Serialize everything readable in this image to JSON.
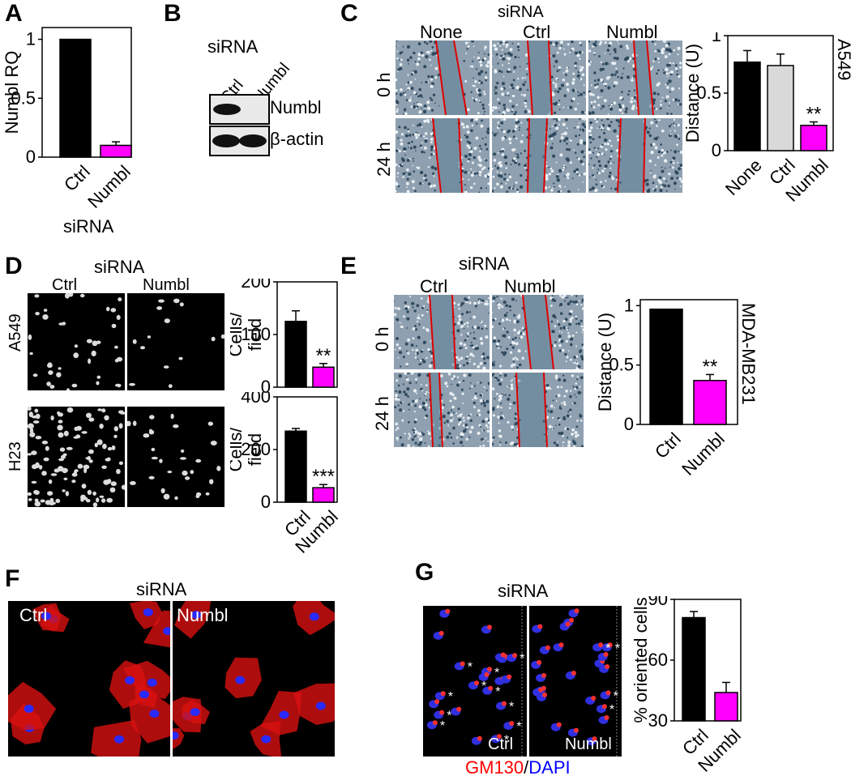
{
  "panels": {
    "A": {
      "label": "A",
      "ylabel": "Numbl RQ",
      "xgroup": "siRNA",
      "chart_data": {
        "type": "bar",
        "categories": [
          "Ctrl",
          "Numbl"
        ],
        "values": [
          1.0,
          0.1
        ],
        "errors": [
          0,
          0.03
        ],
        "colors": [
          "#000000",
          "#ff00ff"
        ],
        "yticks": [
          "0",
          "0.5",
          "1"
        ],
        "ylim": [
          0,
          1.1
        ],
        "ylabel": "Numbl RQ",
        "xlabel": "siRNA"
      }
    },
    "B": {
      "label": "B",
      "group": "siRNA",
      "lanes": [
        "Ctrl",
        "Numbl"
      ],
      "bands": [
        "Numbl",
        "β-actin"
      ]
    },
    "C": {
      "label": "C",
      "group": "siRNA",
      "columns": [
        "None",
        "Ctrl",
        "Numbl"
      ],
      "rows": [
        "0 h",
        "24 h"
      ],
      "cell_line": "A549",
      "chart_data": {
        "type": "bar",
        "categories": [
          "None",
          "Ctrl",
          "Numbl"
        ],
        "values": [
          0.77,
          0.74,
          0.22
        ],
        "errors": [
          0.1,
          0.1,
          0.03
        ],
        "colors": [
          "#000000",
          "#d9d9d9",
          "#ff00ff"
        ],
        "annotations": [
          "",
          "",
          "**"
        ],
        "yticks": [
          "0",
          "0.5",
          "1"
        ],
        "ylim": [
          0,
          1
        ],
        "ylabel": "Distance (U)"
      }
    },
    "D": {
      "label": "D",
      "group": "siRNA",
      "columns": [
        "Ctrl",
        "Numbl"
      ],
      "rows": [
        "A549",
        "H23"
      ],
      "chart_data": [
        {
          "type": "bar",
          "categories": [
            "Ctrl",
            "Numbl"
          ],
          "values": [
            125,
            38
          ],
          "errors": [
            20,
            7
          ],
          "colors": [
            "#000000",
            "#ff00ff"
          ],
          "annotations": [
            "",
            "**"
          ],
          "yticks": [
            "0",
            "100",
            "200"
          ],
          "ylim": [
            0,
            200
          ],
          "ylabel": "Cells/ field"
        },
        {
          "type": "bar",
          "categories": [
            "Ctrl",
            "Numbl"
          ],
          "values": [
            270,
            55
          ],
          "errors": [
            10,
            12
          ],
          "colors": [
            "#000000",
            "#ff00ff"
          ],
          "annotations": [
            "",
            "***"
          ],
          "yticks": [
            "0",
            "200",
            "400"
          ],
          "ylim": [
            0,
            400
          ],
          "ylabel": "Cells/ field"
        }
      ]
    },
    "E": {
      "label": "E",
      "group": "siRNA",
      "columns": [
        "Ctrl",
        "Numbl"
      ],
      "rows": [
        "0 h",
        "24 h"
      ],
      "cell_line": "MDA-MB231",
      "chart_data": {
        "type": "bar",
        "categories": [
          "Ctrl",
          "Numbl"
        ],
        "values": [
          0.97,
          0.37
        ],
        "errors": [
          0,
          0.05
        ],
        "colors": [
          "#000000",
          "#ff00ff"
        ],
        "annotations": [
          "",
          "**"
        ],
        "yticks": [
          "0",
          "0.5",
          "1"
        ],
        "ylim": [
          0,
          1.05
        ],
        "ylabel": "Distance (U)"
      }
    },
    "F": {
      "label": "F",
      "group": "siRNA",
      "columns": [
        "Ctrl",
        "Numbl"
      ]
    },
    "G": {
      "label": "G",
      "group": "siRNA",
      "columns": [
        "Ctrl",
        "Numbl"
      ],
      "stain_red": "GM130",
      "stain_sep": "/",
      "stain_blue": "DAPI",
      "chart_data": {
        "type": "bar",
        "categories": [
          "Ctrl",
          "Numbl"
        ],
        "values": [
          81,
          44
        ],
        "errors": [
          3,
          5
        ],
        "colors": [
          "#000000",
          "#ff00ff"
        ],
        "yticks": [
          "30",
          "60",
          "90"
        ],
        "ylim": [
          30,
          90
        ],
        "ylabel": "% oriented cells"
      }
    }
  }
}
